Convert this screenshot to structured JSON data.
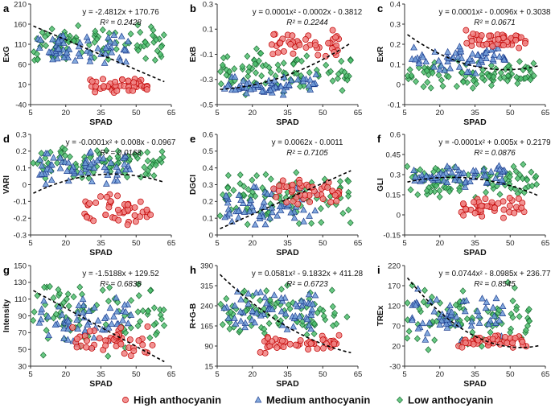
{
  "figure": {
    "x_axis_label": "SPAD"
  },
  "legend": [
    {
      "key": "high",
      "label": "High anthocyanin",
      "fill": "#f08080",
      "stroke": "#c00000",
      "marker": "circle"
    },
    {
      "key": "medium",
      "label": "Medium anthocyanin",
      "fill": "#6f9bd8",
      "stroke": "#1f3f8f",
      "marker": "triangle"
    },
    {
      "key": "low",
      "label": "Low anthocyanin",
      "fill": "#4fbf6f",
      "stroke": "#1b6b33",
      "marker": "diamond"
    }
  ],
  "chart_data": [
    {
      "panel": "a",
      "type": "scatter",
      "ylabel": "ExG",
      "xlabel": "SPAD",
      "xticks": [
        "5",
        "20",
        "35",
        "50",
        "65"
      ],
      "xlim": [
        5,
        65
      ],
      "yticks": [
        "-40",
        "10",
        "60",
        "110",
        "160",
        "210"
      ],
      "ylim": [
        -40,
        210
      ],
      "fit": {
        "equation": "y = -2.4812x + 170.76",
        "r2": "R² = 0.2428",
        "coef": [
          170.76,
          -2.4812,
          0
        ]
      },
      "clusters": {
        "high": {
          "x": [
            30,
            56
          ],
          "y": [
            -12,
            28
          ],
          "n": 46
        },
        "medium": {
          "x": [
            8,
            48
          ],
          "y": [
            55,
            145
          ],
          "n": 60
        },
        "low": {
          "x": [
            6,
            62
          ],
          "y": [
            60,
            160
          ],
          "n": 90
        }
      }
    },
    {
      "panel": "b",
      "type": "scatter",
      "ylabel": "ExB",
      "xlabel": "SPAD",
      "xticks": [
        "5",
        "20",
        "35",
        "50",
        "65"
      ],
      "xlim": [
        5,
        65
      ],
      "yticks": [
        "-0.5",
        "-0.3",
        "-0.1",
        "0.1",
        "0.3"
      ],
      "ylim": [
        -0.5,
        0.3
      ],
      "fit": {
        "equation": "y = 0.0001x² - 0.0002x - 0.3812",
        "r2": "R² = 0.2244",
        "coef": [
          -0.3812,
          -0.0002,
          0.0001
        ]
      },
      "clusters": {
        "high": {
          "x": [
            28,
            57
          ],
          "y": [
            -0.15,
            0.12
          ],
          "n": 46
        },
        "medium": {
          "x": [
            8,
            48
          ],
          "y": [
            -0.45,
            -0.25
          ],
          "n": 60
        },
        "low": {
          "x": [
            6,
            62
          ],
          "y": [
            -0.45,
            -0.02
          ],
          "n": 90
        }
      }
    },
    {
      "panel": "c",
      "type": "scatter",
      "ylabel": "ExR",
      "xlabel": "SPAD",
      "xticks": [
        "5",
        "20",
        "35",
        "50",
        "65"
      ],
      "xlim": [
        5,
        65
      ],
      "yticks": [
        "-0.1",
        "0",
        "0.1",
        "0.2",
        "0.3",
        "0.4"
      ],
      "ylim": [
        -0.1,
        0.4
      ],
      "fit": {
        "equation": "y = 0.0001x² - 0.0096x + 0.3038",
        "r2": "R² = 0.0671",
        "coef": [
          0.3038,
          -0.0096,
          0.0001
        ]
      },
      "clusters": {
        "high": {
          "x": [
            28,
            57
          ],
          "y": [
            0.18,
            0.28
          ],
          "n": 46
        },
        "medium": {
          "x": [
            8,
            48
          ],
          "y": [
            0.05,
            0.22
          ],
          "n": 60
        },
        "low": {
          "x": [
            6,
            62
          ],
          "y": [
            -0.02,
            0.12
          ],
          "n": 90
        }
      }
    },
    {
      "panel": "d",
      "type": "scatter",
      "ylabel": "VARI",
      "xlabel": "SPAD",
      "xticks": [
        "5",
        "20",
        "35",
        "50",
        "65"
      ],
      "xlim": [
        5,
        65
      ],
      "yticks": [
        "-0.3",
        "-0.2",
        "-0.1",
        "0",
        "0.1",
        "0.2",
        "0.3"
      ],
      "ylim": [
        -0.3,
        0.3
      ],
      "fit": {
        "equation": "y = -0.0001x² + 0.008x - 0.0967",
        "r2": "R² = 0.0168",
        "coef": [
          -0.0967,
          0.008,
          -0.0001
        ]
      },
      "clusters": {
        "high": {
          "x": [
            28,
            57
          ],
          "y": [
            -0.25,
            -0.05
          ],
          "n": 46
        },
        "medium": {
          "x": [
            8,
            48
          ],
          "y": [
            0.0,
            0.22
          ],
          "n": 60
        },
        "low": {
          "x": [
            6,
            62
          ],
          "y": [
            0.02,
            0.24
          ],
          "n": 90
        }
      }
    },
    {
      "panel": "e",
      "type": "scatter",
      "ylabel": "DGCI",
      "xlabel": "SPAD",
      "xticks": [
        "5",
        "20",
        "35",
        "50",
        "65"
      ],
      "xlim": [
        5,
        65
      ],
      "yticks": [
        "0",
        "0.1",
        "0.2",
        "0.3",
        "0.4",
        "0.5",
        "0.6"
      ],
      "ylim": [
        0,
        0.6
      ],
      "fit": {
        "equation": "y = 0.0062x - 0.0011",
        "r2": "R² = 0.7105",
        "coef": [
          -0.0011,
          0.0062,
          0
        ]
      },
      "clusters": {
        "high": {
          "x": [
            28,
            57
          ],
          "y": [
            0.17,
            0.35
          ],
          "n": 46
        },
        "medium": {
          "x": [
            8,
            48
          ],
          "y": [
            0.04,
            0.3
          ],
          "n": 60
        },
        "low": {
          "x": [
            6,
            62
          ],
          "y": [
            0.04,
            0.42
          ],
          "n": 90
        }
      }
    },
    {
      "panel": "f",
      "type": "scatter",
      "ylabel": "GLI",
      "xlabel": "SPAD",
      "xticks": [
        "5",
        "20",
        "35",
        "50",
        "65"
      ],
      "xlim": [
        5,
        65
      ],
      "yticks": [
        "-0.15",
        "0",
        "0.15",
        "0.3",
        "0.45",
        "0.6"
      ],
      "ylim": [
        -0.15,
        0.6
      ],
      "fit": {
        "equation": "y = -0.0001x² + 0.005x + 0.2179",
        "r2": "R² = 0.0876",
        "coef": [
          0.2179,
          0.005,
          -0.0001
        ]
      },
      "clusters": {
        "high": {
          "x": [
            28,
            57
          ],
          "y": [
            -0.03,
            0.15
          ],
          "n": 46
        },
        "medium": {
          "x": [
            8,
            48
          ],
          "y": [
            0.2,
            0.38
          ],
          "n": 60
        },
        "low": {
          "x": [
            6,
            62
          ],
          "y": [
            0.1,
            0.4
          ],
          "n": 90
        }
      }
    },
    {
      "panel": "g",
      "type": "scatter",
      "ylabel": "Intensity",
      "xlabel": "SPAD",
      "xticks": [
        "5",
        "20",
        "35",
        "50",
        "65"
      ],
      "xlim": [
        5,
        65
      ],
      "yticks": [
        "30",
        "50",
        "70",
        "90",
        "110",
        "130",
        "150"
      ],
      "ylim": [
        30,
        150
      ],
      "fit": {
        "equation": "y = -1.5188x + 129.52",
        "r2": "R² = 0.6838",
        "coef": [
          129.52,
          -1.5188,
          0
        ]
      },
      "clusters": {
        "high": {
          "x": [
            22,
            57
          ],
          "y": [
            38,
            80
          ],
          "n": 46
        },
        "medium": {
          "x": [
            8,
            48
          ],
          "y": [
            50,
            115
          ],
          "n": 60
        },
        "low": {
          "x": [
            6,
            62
          ],
          "y": [
            40,
            140
          ],
          "n": 90
        }
      }
    },
    {
      "panel": "h",
      "type": "scatter",
      "ylabel": "R+G-B",
      "xlabel": "SPAD",
      "xticks": [
        "5",
        "20",
        "35",
        "50",
        "65"
      ],
      "xlim": [
        5,
        65
      ],
      "yticks": [
        "15",
        "90",
        "165",
        "240",
        "315",
        "390"
      ],
      "ylim": [
        15,
        390
      ],
      "fit": {
        "equation": "y = 0.0581x² - 9.1832x + 411.28",
        "r2": "R² = 0.6723",
        "coef": [
          411.28,
          -9.1832,
          0.0581
        ]
      },
      "clusters": {
        "high": {
          "x": [
            22,
            57
          ],
          "y": [
            60,
            140
          ],
          "n": 46
        },
        "medium": {
          "x": [
            8,
            48
          ],
          "y": [
            140,
            310
          ],
          "n": 60
        },
        "low": {
          "x": [
            6,
            62
          ],
          "y": [
            100,
            330
          ],
          "n": 90
        }
      }
    },
    {
      "panel": "i",
      "type": "scatter",
      "ylabel": "TREx",
      "xlabel": "SPAD",
      "xticks": [
        "5",
        "20",
        "35",
        "50",
        "65"
      ],
      "xlim": [
        5,
        65
      ],
      "yticks": [
        "-30",
        "20",
        "70",
        "120",
        "170",
        "220"
      ],
      "ylim": [
        -30,
        220
      ],
      "fit": {
        "equation": "y = 0.0744x² - 8.0985x + 236.77",
        "r2": "R² = 0.8545",
        "coef": [
          236.77,
          -8.0985,
          0.0744
        ]
      },
      "clusters": {
        "high": {
          "x": [
            28,
            57
          ],
          "y": [
            15,
            50
          ],
          "n": 46
        },
        "medium": {
          "x": [
            8,
            48
          ],
          "y": [
            25,
            170
          ],
          "n": 60
        },
        "low": {
          "x": [
            6,
            62
          ],
          "y": [
            5,
            180
          ],
          "n": 90
        }
      }
    }
  ]
}
